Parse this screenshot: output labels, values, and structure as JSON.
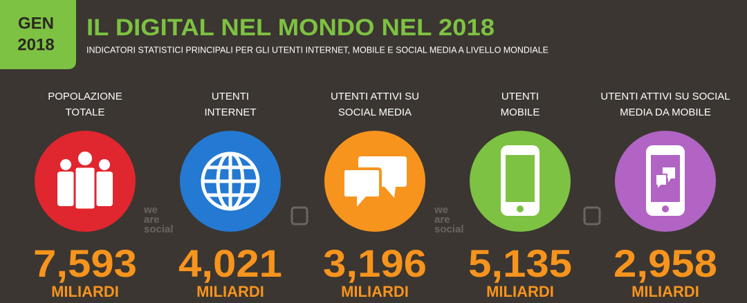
{
  "header": {
    "badge": [
      "GEN",
      "2018"
    ],
    "title": "IL DIGITAL NEL MONDO NEL 2018",
    "subtitle": "INDICATORI STATISTICI PRINCIPALI PER GLI UTENTI INTERNET, MOBILE E SOCIAL MEDIA A LIVELLO MONDIALE"
  },
  "stats": [
    {
      "label": [
        "POPOLAZIONE",
        "TOTALE"
      ],
      "value": "7,593",
      "unit": "MILIARDI"
    },
    {
      "label": [
        "UTENTI",
        "INTERNET"
      ],
      "value": "4,021",
      "unit": "MILIARDI"
    },
    {
      "label": [
        "UTENTI ATTIVI SU",
        "SOCIAL MEDIA"
      ],
      "value": "3,196",
      "unit": "MILIARDI"
    },
    {
      "label": [
        "UTENTI",
        "MOBILE"
      ],
      "value": "5,135",
      "unit": "MILIARDI"
    },
    {
      "label": [
        "UTENTI ATTIVI SU SOCIAL",
        "MEDIA DA MOBILE"
      ],
      "value": "2,958",
      "unit": "MILIARDI"
    }
  ],
  "watermark": [
    "we",
    "are",
    "social"
  ]
}
